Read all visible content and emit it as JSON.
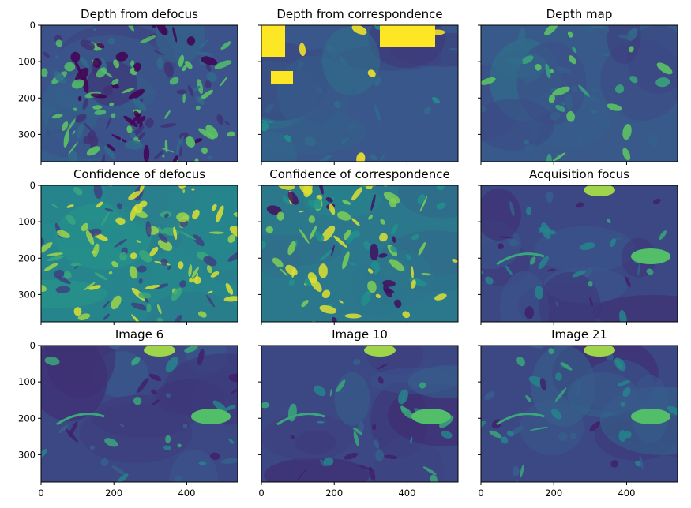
{
  "chart_data": [
    {
      "type": "heatmap",
      "title": "Depth from defocus",
      "colormap": "viridis",
      "x_ticks": [
        "0",
        "200",
        "400"
      ],
      "y_ticks": [
        "0",
        "100",
        "200",
        "300"
      ],
      "xlim": [
        0,
        540
      ],
      "ylim": [
        375,
        0
      ],
      "show_xtick_labels": false,
      "show_ytick_labels": true
    },
    {
      "type": "heatmap",
      "title": "Depth from correspondence",
      "colormap": "viridis",
      "x_ticks": [
        "0",
        "200",
        "400"
      ],
      "y_ticks": [
        "0",
        "100",
        "200",
        "300"
      ],
      "xlim": [
        0,
        540
      ],
      "ylim": [
        375,
        0
      ],
      "show_xtick_labels": false,
      "show_ytick_labels": false
    },
    {
      "type": "heatmap",
      "title": "Depth map",
      "colormap": "viridis",
      "x_ticks": [
        "0",
        "200",
        "400"
      ],
      "y_ticks": [
        "0",
        "100",
        "200",
        "300"
      ],
      "xlim": [
        0,
        540
      ],
      "ylim": [
        375,
        0
      ],
      "show_xtick_labels": false,
      "show_ytick_labels": false
    },
    {
      "type": "heatmap",
      "title": "Confidence of defocus",
      "colormap": "viridis",
      "x_ticks": [
        "0",
        "200",
        "400"
      ],
      "y_ticks": [
        "0",
        "100",
        "200",
        "300"
      ],
      "xlim": [
        0,
        540
      ],
      "ylim": [
        375,
        0
      ],
      "show_xtick_labels": false,
      "show_ytick_labels": true
    },
    {
      "type": "heatmap",
      "title": "Confidence of correspondence",
      "colormap": "viridis",
      "x_ticks": [
        "0",
        "200",
        "400"
      ],
      "y_ticks": [
        "0",
        "100",
        "200",
        "300"
      ],
      "xlim": [
        0,
        540
      ],
      "ylim": [
        375,
        0
      ],
      "show_xtick_labels": false,
      "show_ytick_labels": false
    },
    {
      "type": "heatmap",
      "title": "Acquisition focus",
      "colormap": "viridis",
      "x_ticks": [
        "0",
        "200",
        "400"
      ],
      "y_ticks": [
        "0",
        "100",
        "200",
        "300"
      ],
      "xlim": [
        0,
        540
      ],
      "ylim": [
        375,
        0
      ],
      "show_xtick_labels": false,
      "show_ytick_labels": false
    },
    {
      "type": "heatmap",
      "title": "Image 6",
      "colormap": "viridis",
      "x_ticks": [
        "0",
        "200",
        "400"
      ],
      "y_ticks": [
        "0",
        "100",
        "200",
        "300"
      ],
      "xlim": [
        0,
        540
      ],
      "ylim": [
        375,
        0
      ],
      "show_xtick_labels": true,
      "show_ytick_labels": true
    },
    {
      "type": "heatmap",
      "title": "Image 10",
      "colormap": "viridis",
      "x_ticks": [
        "0",
        "200",
        "400"
      ],
      "y_ticks": [
        "0",
        "100",
        "200",
        "300"
      ],
      "xlim": [
        0,
        540
      ],
      "ylim": [
        375,
        0
      ],
      "show_xtick_labels": true,
      "show_ytick_labels": false
    },
    {
      "type": "heatmap",
      "title": "Image 21",
      "colormap": "viridis",
      "x_ticks": [
        "0",
        "200",
        "400"
      ],
      "y_ticks": [
        "0",
        "100",
        "200",
        "300"
      ],
      "xlim": [
        0,
        540
      ],
      "ylim": [
        375,
        0
      ],
      "show_xtick_labels": true,
      "show_ytick_labels": false
    }
  ]
}
